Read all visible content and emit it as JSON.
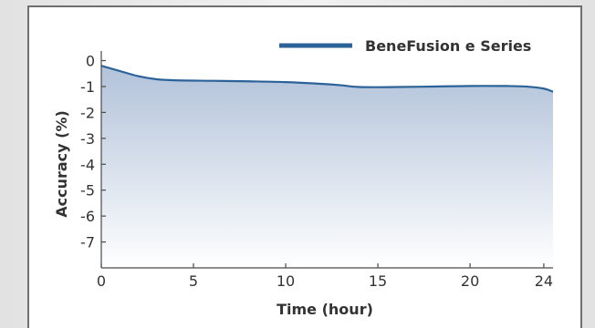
{
  "chart_data": {
    "type": "area",
    "xlabel": "Time (hour)",
    "ylabel": "Accuracy (%)",
    "xlim": [
      0,
      24.5
    ],
    "ylim": [
      -8,
      0.3
    ],
    "x_ticks": [
      0,
      5,
      10,
      15,
      20,
      24
    ],
    "x_tick_labels": [
      "0",
      "5",
      "10",
      "15",
      "20",
      "24"
    ],
    "y_ticks": [
      0,
      -1,
      -2,
      -3,
      -4,
      -5,
      -6,
      -7
    ],
    "y_tick_labels": [
      "0",
      "-1",
      "-2",
      "-3",
      "-4",
      "-5",
      "-6",
      "-7"
    ],
    "grid": false,
    "legend_position": "top-right",
    "series": [
      {
        "name": "BeneFusion e Series",
        "color": "#2b6399",
        "x": [
          0,
          1,
          2,
          3,
          4,
          6,
          8,
          10,
          12,
          13,
          14,
          16,
          18,
          20,
          22,
          23,
          24,
          24.5
        ],
        "y": [
          -0.2,
          -0.4,
          -0.6,
          -0.72,
          -0.76,
          -0.78,
          -0.8,
          -0.83,
          -0.9,
          -0.95,
          -1.02,
          -1.02,
          -1.0,
          -0.98,
          -0.98,
          -1.0,
          -1.08,
          -1.2
        ]
      }
    ]
  }
}
